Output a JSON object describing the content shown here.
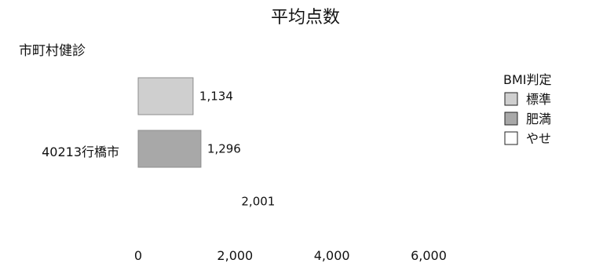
{
  "chart_data": {
    "type": "bar",
    "orientation": "horizontal",
    "title": "平均点数",
    "group_title": "市町村健診",
    "categories": [
      "40213行橋市"
    ],
    "series": [
      {
        "name": "標準",
        "color": "#cfcfcf",
        "values": [
          1134
        ]
      },
      {
        "name": "肥満",
        "color": "#a8a8a8",
        "values": [
          1296
        ]
      },
      {
        "name": "やせ",
        "color": "#ffffff",
        "values": [
          2001
        ]
      }
    ],
    "data_labels": [
      "1,134",
      "1,296",
      "2,001"
    ],
    "legend": {
      "title": "BMI判定",
      "position": "top-right",
      "entries": [
        "標準",
        "肥満",
        "やせ"
      ]
    },
    "xlim": [
      0,
      6000
    ],
    "x_ticks": [
      0,
      2000,
      4000,
      6000
    ],
    "x_tick_labels": [
      "0",
      "2,000",
      "4,000",
      "6,000"
    ],
    "grid": false
  }
}
